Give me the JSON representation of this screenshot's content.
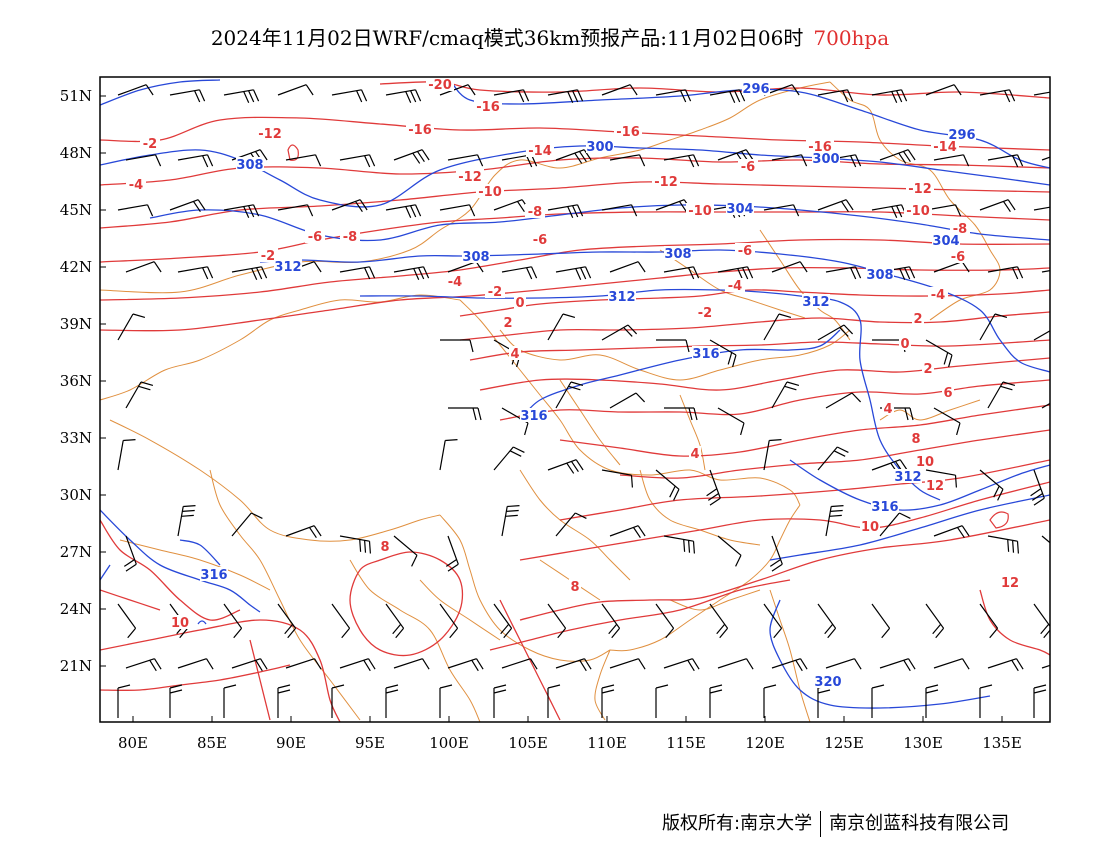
{
  "title": {
    "text": "2024年11月02日WRF/cmaq模式36km预报产品:11月02日06时",
    "level": "700hpa"
  },
  "lat_labels": [
    "51N",
    "48N",
    "45N",
    "42N",
    "39N",
    "36N",
    "33N",
    "30N",
    "27N",
    "24N",
    "21N"
  ],
  "lon_labels": [
    "80E",
    "85E",
    "90E",
    "95E",
    "100E",
    "105E",
    "110E",
    "115E",
    "120E",
    "125E",
    "130E",
    "135E"
  ],
  "colors": {
    "temperature": "#e03a3a",
    "height": "#2848d8",
    "boundary": "#e09040",
    "barb": "#000000",
    "level_text": "#e03030"
  },
  "map_data": {
    "type": "weather-chart",
    "fields": [
      "temperature contours",
      "geopotential height contours",
      "wind barbs",
      "boundaries"
    ],
    "temperature_contours": [
      -20,
      -16,
      -14,
      -12,
      -10,
      -8,
      -6,
      -4,
      -2,
      0,
      2,
      4,
      6,
      8,
      10,
      12
    ],
    "height_contours": [
      296,
      300,
      304,
      308,
      312,
      316,
      320
    ]
  },
  "temp_labels": [
    "-20",
    "-16",
    "-16",
    "-16",
    "-16",
    "-14",
    "-14",
    "-12",
    "-12",
    "-12",
    "-12",
    "-10",
    "-10",
    "-10",
    "-8",
    "-8",
    "-8",
    "-6",
    "-6",
    "-6",
    "-6",
    "-4",
    "-4",
    "-4",
    "-2",
    "-2",
    "-2",
    "0",
    "0",
    "2",
    "2",
    "2",
    "4",
    "4",
    "4",
    "6",
    "8",
    "8",
    "8",
    "10",
    "10",
    "10",
    "12",
    "12",
    "-2",
    "-6",
    "-4"
  ],
  "height_labels": [
    "296",
    "296",
    "300",
    "300",
    "304",
    "304",
    "308",
    "308",
    "308",
    "308",
    "312",
    "312",
    "312",
    "312",
    "316",
    "316",
    "316",
    "316",
    "320"
  ],
  "footer": {
    "left": "版权所有:南京大学",
    "right": "南京创蓝科技有限公司"
  }
}
